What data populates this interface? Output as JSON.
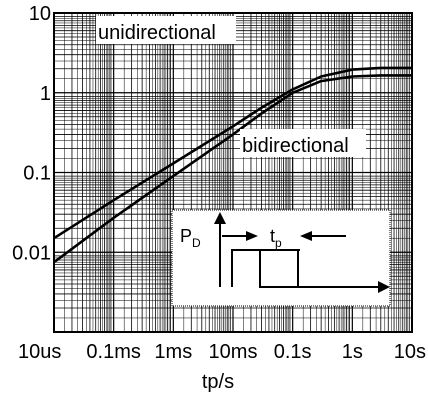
{
  "chart_data": {
    "type": "line",
    "title": "",
    "xlabel": "tp/s",
    "ylabel": "",
    "xscale": "log",
    "yscale": "log",
    "xlim": [
      1e-05,
      10
    ],
    "ylim": [
      0.001,
      10
    ],
    "grid": true,
    "xticks": [
      {
        "value": 1e-05,
        "label": "10us"
      },
      {
        "value": 0.0001,
        "label": "0.1ms"
      },
      {
        "value": 0.001,
        "label": "1ms"
      },
      {
        "value": 0.01,
        "label": "10ms"
      },
      {
        "value": 0.1,
        "label": "0.1s"
      },
      {
        "value": 1,
        "label": "1s"
      },
      {
        "value": 10,
        "label": "10s"
      }
    ],
    "yticks": [
      {
        "value": 10,
        "label": "10"
      },
      {
        "value": 1,
        "label": "1"
      },
      {
        "value": 0.1,
        "label": "0.1"
      },
      {
        "value": 0.01,
        "label": "0.01"
      }
    ],
    "series": [
      {
        "name": "unidirectional",
        "x": [
          1e-05,
          0.0001,
          0.001,
          0.01,
          0.03,
          0.1,
          0.3,
          1,
          3,
          10
        ],
        "y": [
          0.015,
          0.045,
          0.13,
          0.38,
          0.65,
          1.1,
          1.6,
          1.95,
          2.05,
          2.05
        ]
      },
      {
        "name": "bidirectional",
        "x": [
          1e-05,
          0.0001,
          0.001,
          0.01,
          0.03,
          0.1,
          0.3,
          1,
          3,
          10
        ],
        "y": [
          0.0075,
          0.027,
          0.09,
          0.3,
          0.55,
          1.0,
          1.4,
          1.6,
          1.65,
          1.65
        ]
      }
    ],
    "annotations": {
      "inset_pd": "P",
      "inset_pd_sub": "D",
      "inset_tp": "t",
      "inset_tp_sub": "p"
    }
  }
}
